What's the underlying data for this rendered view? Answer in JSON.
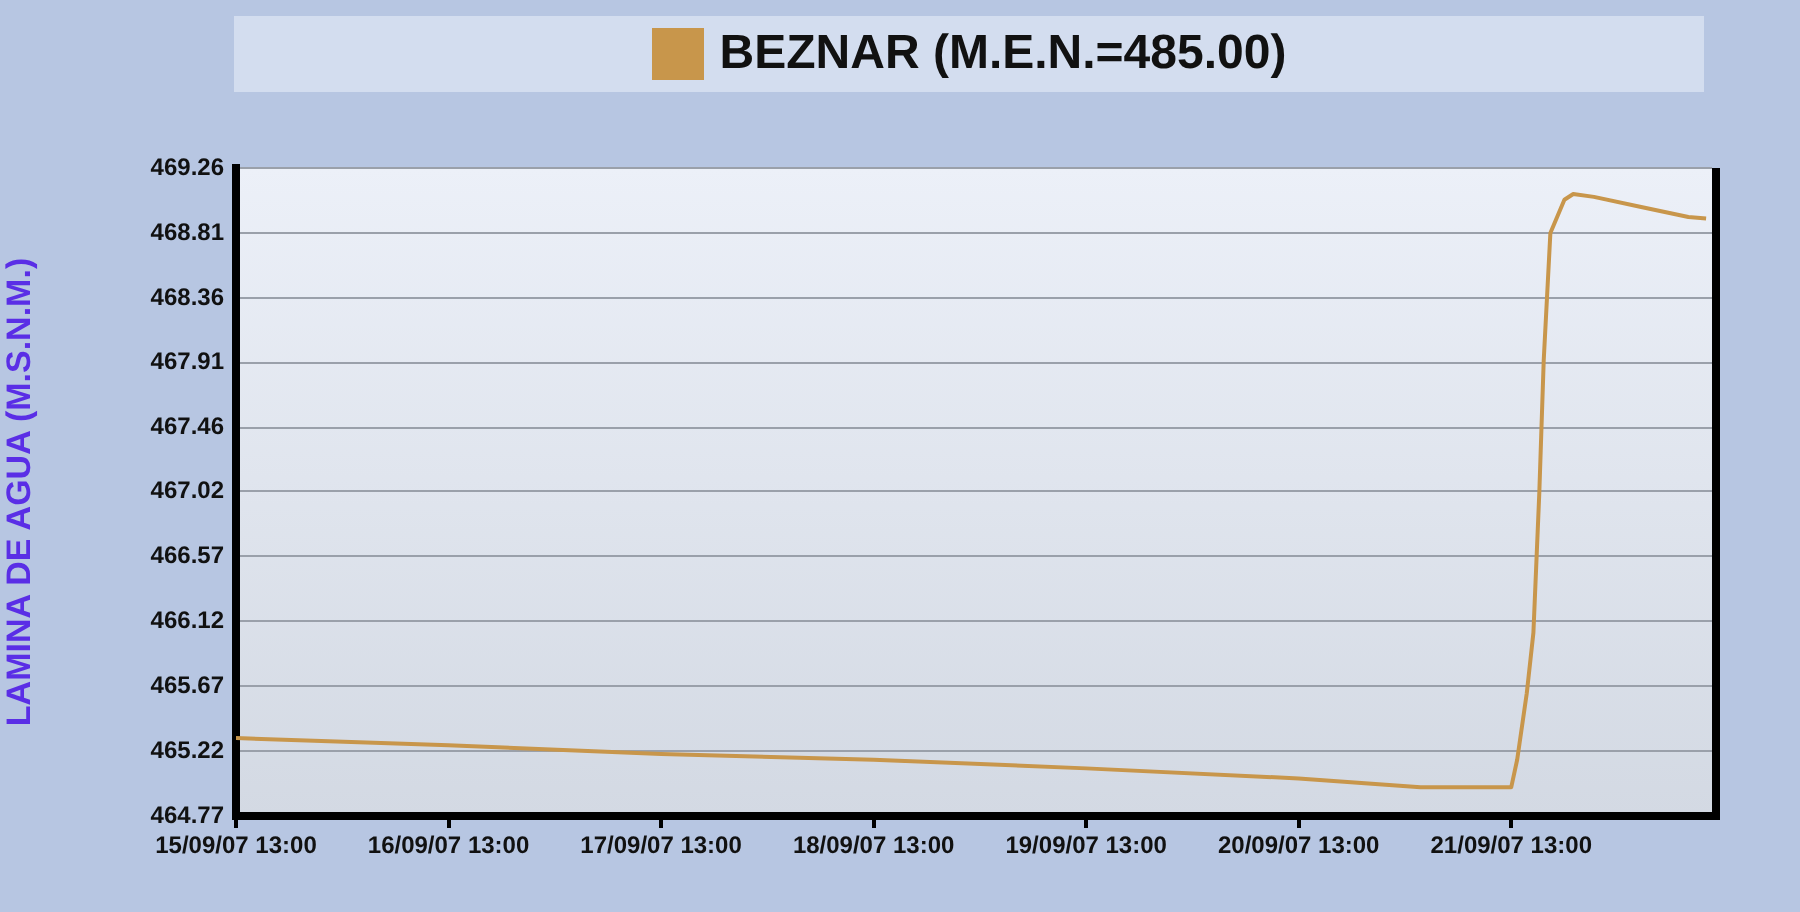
{
  "chart_data": {
    "type": "line",
    "ylabel": "LAMINA DE AGUA (M.S.N.M.)",
    "x": [
      "--09-15T13:00",
      "--09-16T13:00",
      "--09-17T13:00",
      "--09-18T13:00",
      "--09-19T13:00",
      "--09-20T13:00",
      "--09-21T02:45",
      "--09-21T13:00",
      "--09-21T13:40",
      "--09-21T14:45",
      "--09-21T15:30",
      "--09-21T16:10",
      "--09-21T16:40",
      "--09-21T17:25",
      "--09-21T19:00",
      "--09-21T20:00",
      "--09-21T22:20",
      "--09-22T03:40",
      "--09-22T09:00",
      "--09-22T11:00"
    ],
    "series": [
      {
        "name": "BEZNAR (M.E.N.=485.00)",
        "color": "#c8964b",
        "values": [
          465.31,
          465.26,
          465.2,
          465.16,
          465.1,
          465.03,
          464.97,
          464.97,
          465.16,
          465.62,
          466.04,
          467.01,
          467.93,
          468.81,
          469.04,
          469.08,
          469.06,
          468.99,
          468.92,
          468.91
        ]
      }
    ],
    "xlim": [
      "--09-15T13:00",
      "--09-22T11:40"
    ],
    "xticks": [
      {
        "value": "--09-15T13:00",
        "label": "15/09/07 13:00"
      },
      {
        "value": "--09-16T13:00",
        "label": "16/09/07 13:00"
      },
      {
        "value": "--09-17T13:00",
        "label": "17/09/07 13:00"
      },
      {
        "value": "--09-18T13:00",
        "label": "18/09/07 13:00"
      },
      {
        "value": "--09-19T13:00",
        "label": "19/09/07 13:00"
      },
      {
        "value": "--09-20T13:00",
        "label": "20/09/07 13:00"
      },
      {
        "value": "--09-21T13:00",
        "label": "21/09/07 13:00"
      }
    ],
    "ylim": [
      464.77,
      469.26
    ],
    "yticks": [
      464.77,
      465.22,
      465.67,
      466.12,
      466.57,
      467.02,
      467.46,
      467.91,
      468.36,
      468.81,
      469.26
    ],
    "grid": "y",
    "legend": "top",
    "marker": "none",
    "line_style": "solid"
  }
}
